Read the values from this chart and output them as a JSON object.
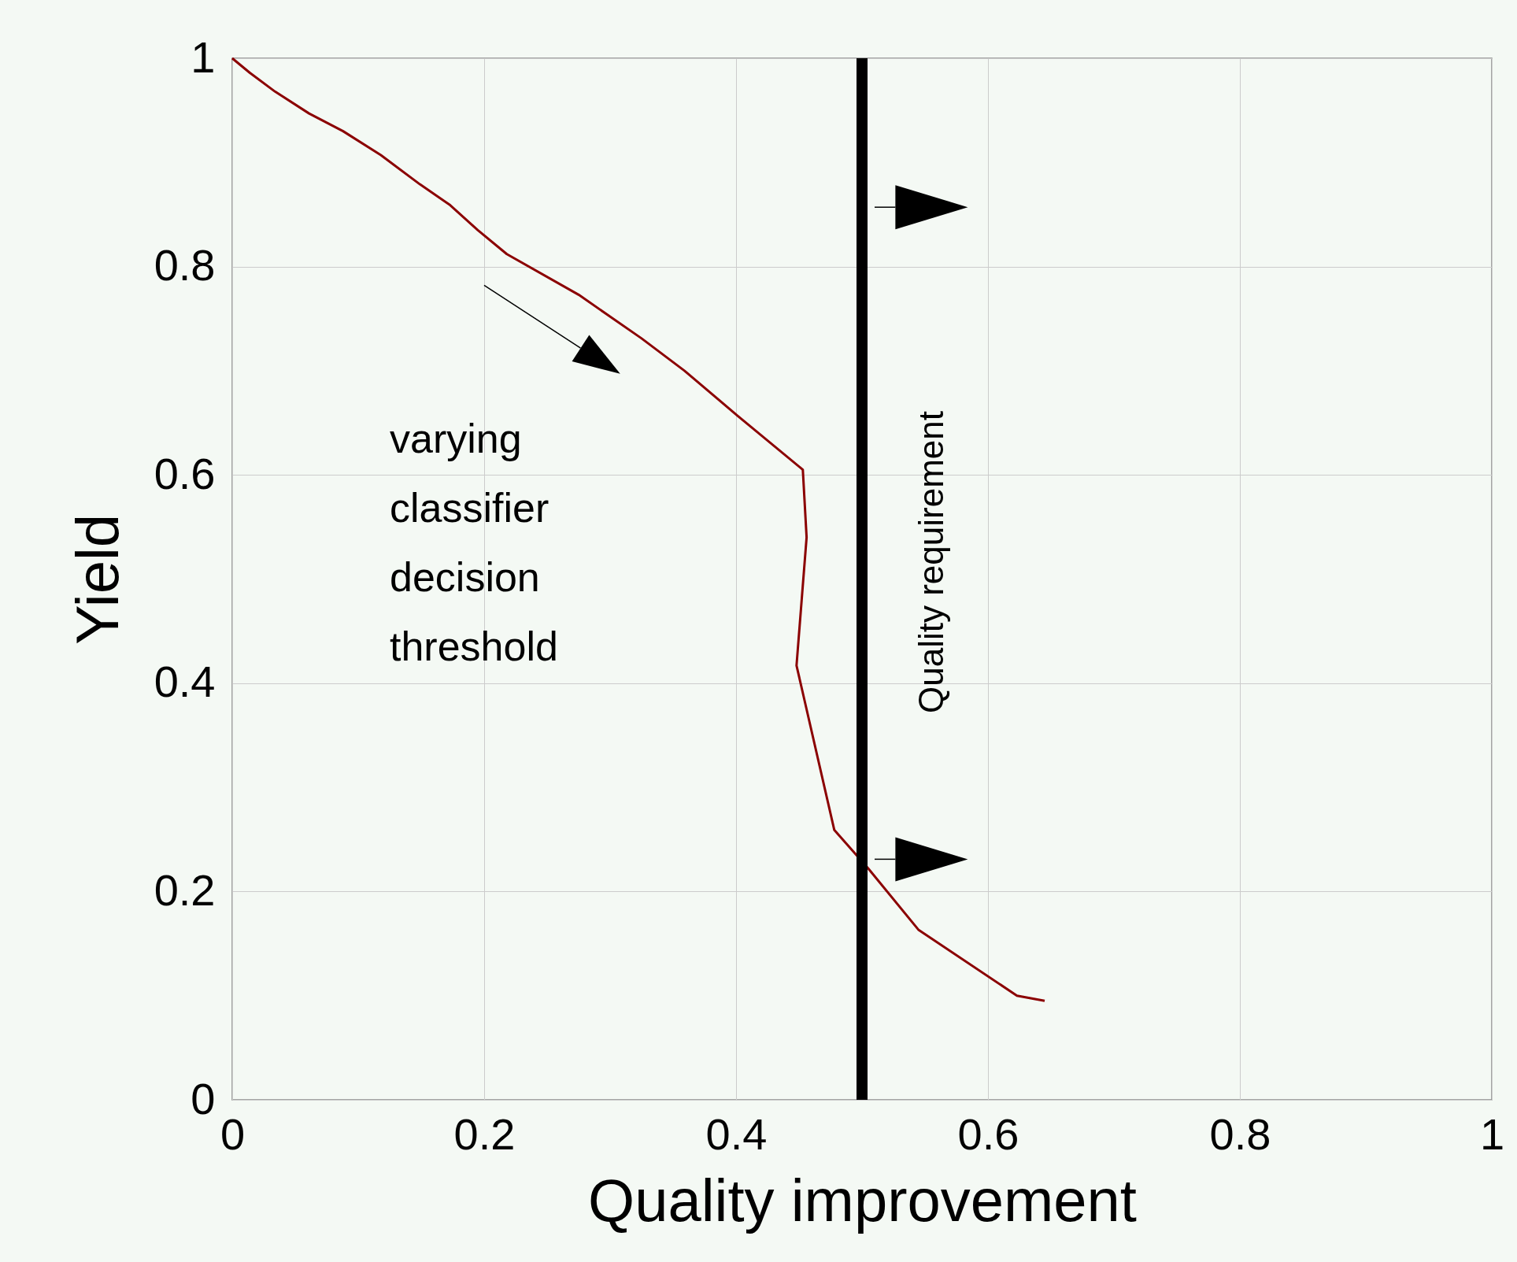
{
  "chart_data": {
    "type": "line",
    "xlabel": "Quality improvement",
    "ylabel": "Yield",
    "x": [
      0,
      0.014,
      0.034,
      0.061,
      0.088,
      0.118,
      0.149,
      0.173,
      0.195,
      0.218,
      0.275,
      0.325,
      0.359,
      0.401,
      0.453,
      0.456,
      0.448,
      0.478,
      0.505,
      0.545,
      0.623,
      0.645
    ],
    "series": [
      {
        "color": "#8b0000",
        "values": [
          1,
          0.986,
          0.968,
          0.947,
          0.93,
          0.907,
          0.879,
          0.859,
          0.835,
          0.812,
          0.773,
          0.731,
          0.7,
          0.657,
          0.605,
          0.54,
          0.417,
          0.259,
          0.222,
          0.163,
          0.1,
          0.095
        ]
      }
    ],
    "xlim": [
      0,
      1
    ],
    "ylim": [
      0,
      1
    ],
    "xticks": [
      0,
      0.2,
      0.4,
      0.6,
      0.8,
      1
    ],
    "yticks": [
      0,
      0.2,
      0.4,
      0.6,
      0.8,
      1
    ],
    "grid": true,
    "ref_lines": [
      {
        "axis": "x",
        "value": 0.5,
        "label": "Quality requirement",
        "color": "#000000"
      }
    ],
    "annotations": [
      "varying classifier decision threshold"
    ]
  }
}
